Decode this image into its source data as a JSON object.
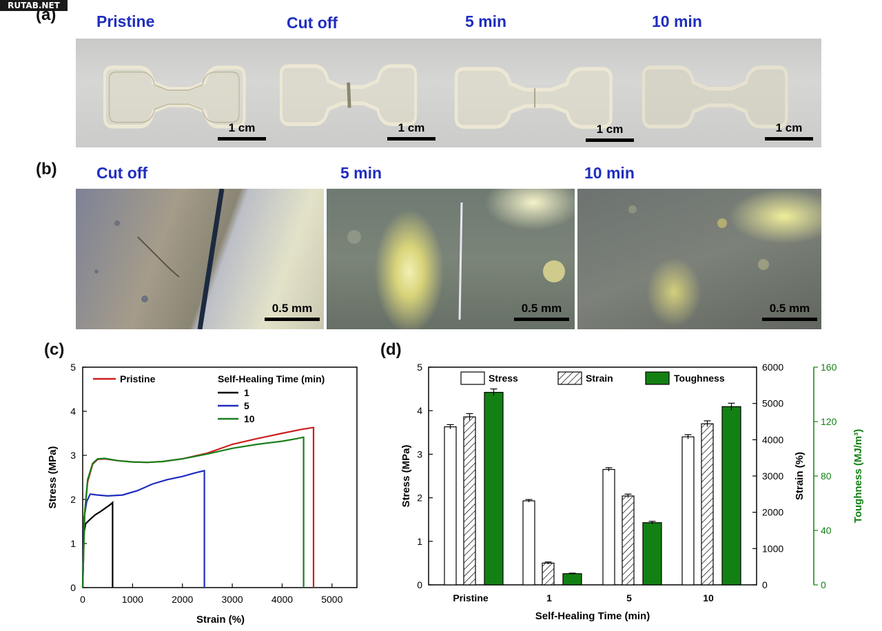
{
  "watermark": "RUTAB.NET",
  "panel_a": {
    "letter": "(a)",
    "labels": [
      "Pristine",
      "Cut off",
      "5 min",
      "10 min"
    ],
    "scale_label": "1 cm"
  },
  "panel_b": {
    "letter": "(b)",
    "labels": [
      "Cut off",
      "5 min",
      "10 min"
    ],
    "scale_label": "0.5 mm"
  },
  "panel_c": {
    "letter": "(c)",
    "legend_title": "Self-Healing Time (min)",
    "pristine_label": "Pristine",
    "colors": {
      "pristine": "#cc1f1f",
      "1": "#000000",
      "5": "#1f2dbf",
      "10": "#1a7f1a"
    }
  },
  "panel_d": {
    "letter": "(d)",
    "legend": {
      "stress": "Stress",
      "strain": "Strain",
      "toughness": "Toughness"
    },
    "toughness_color": "#138013"
  },
  "chart_data": [
    {
      "type": "line",
      "xlabel": "Strain (%)",
      "ylabel": "Stress (MPa)",
      "xlim": [
        0,
        5500
      ],
      "ylim": [
        0,
        5
      ],
      "xticks": [
        0,
        1000,
        2000,
        3000,
        4000,
        5000
      ],
      "yticks": [
        0,
        1,
        2,
        3,
        4,
        5
      ],
      "legend_title": "Self-Healing Time (min)",
      "series": [
        {
          "name": "Pristine",
          "color": "#cc1f1f",
          "x": [
            0,
            40,
            100,
            200,
            300,
            450,
            700,
            1000,
            1300,
            1600,
            2000,
            2500,
            3000,
            3500,
            4000,
            4400,
            4620,
            4630,
            4630
          ],
          "y": [
            0,
            1.7,
            2.4,
            2.8,
            2.91,
            2.92,
            2.88,
            2.85,
            2.84,
            2.86,
            2.92,
            3.05,
            3.25,
            3.38,
            3.5,
            3.59,
            3.63,
            3.63,
            0
          ]
        },
        {
          "name": "1",
          "color": "#000000",
          "x": [
            0,
            20,
            60,
            150,
            250,
            350,
            450,
            550,
            600,
            600
          ],
          "y": [
            0,
            1.2,
            1.45,
            1.55,
            1.65,
            1.72,
            1.8,
            1.88,
            1.93,
            0
          ]
        },
        {
          "name": "5",
          "color": "#1f2dbf",
          "x": [
            0,
            30,
            80,
            150,
            300,
            500,
            800,
            1100,
            1400,
            1700,
            2000,
            2250,
            2430,
            2440,
            2440
          ],
          "y": [
            0,
            1.6,
            1.95,
            2.12,
            2.1,
            2.08,
            2.1,
            2.2,
            2.35,
            2.45,
            2.52,
            2.6,
            2.65,
            2.65,
            0
          ]
        },
        {
          "name": "10",
          "color": "#1a7f1a",
          "x": [
            0,
            40,
            100,
            200,
            300,
            450,
            700,
            1000,
            1300,
            1600,
            2000,
            2500,
            3000,
            3500,
            4000,
            4300,
            4420,
            4430,
            4430
          ],
          "y": [
            0,
            1.7,
            2.45,
            2.82,
            2.92,
            2.93,
            2.88,
            2.85,
            2.84,
            2.86,
            2.92,
            3.03,
            3.16,
            3.25,
            3.32,
            3.38,
            3.41,
            3.41,
            0
          ]
        }
      ]
    },
    {
      "type": "bar",
      "xlabel": "Self-Healing Time (min)",
      "categories": [
        "Pristine",
        "1",
        "5",
        "10"
      ],
      "axes": [
        {
          "label": "Stress (MPa)",
          "side": "left",
          "ylim": [
            0,
            5
          ],
          "ticks": [
            0,
            1,
            2,
            3,
            4,
            5
          ]
        },
        {
          "label": "Strain (%)",
          "side": "right",
          "ylim": [
            0,
            6000
          ],
          "ticks": [
            0,
            1000,
            2000,
            3000,
            4000,
            5000,
            6000
          ]
        },
        {
          "label": "Toughness (MJ/m³)",
          "side": "right-outer",
          "ylim": [
            0,
            160
          ],
          "ticks": [
            0,
            40,
            80,
            120,
            160
          ]
        }
      ],
      "series": [
        {
          "name": "Stress",
          "axis": "left",
          "fill": "white",
          "values": [
            3.63,
            1.93,
            2.65,
            3.4
          ],
          "errors": [
            0.05,
            0.03,
            0.04,
            0.05
          ]
        },
        {
          "name": "Strain",
          "axis": "right",
          "fill": "hatched",
          "values": [
            4630,
            600,
            2450,
            4440
          ],
          "errors": [
            90,
            30,
            50,
            80
          ]
        },
        {
          "name": "Toughness",
          "axis": "right-outer",
          "fill": "#138013",
          "values": [
            141.5,
            8.2,
            45.7,
            131.0
          ],
          "errors": [
            2.5,
            0.4,
            1.0,
            2.5
          ]
        }
      ]
    }
  ]
}
